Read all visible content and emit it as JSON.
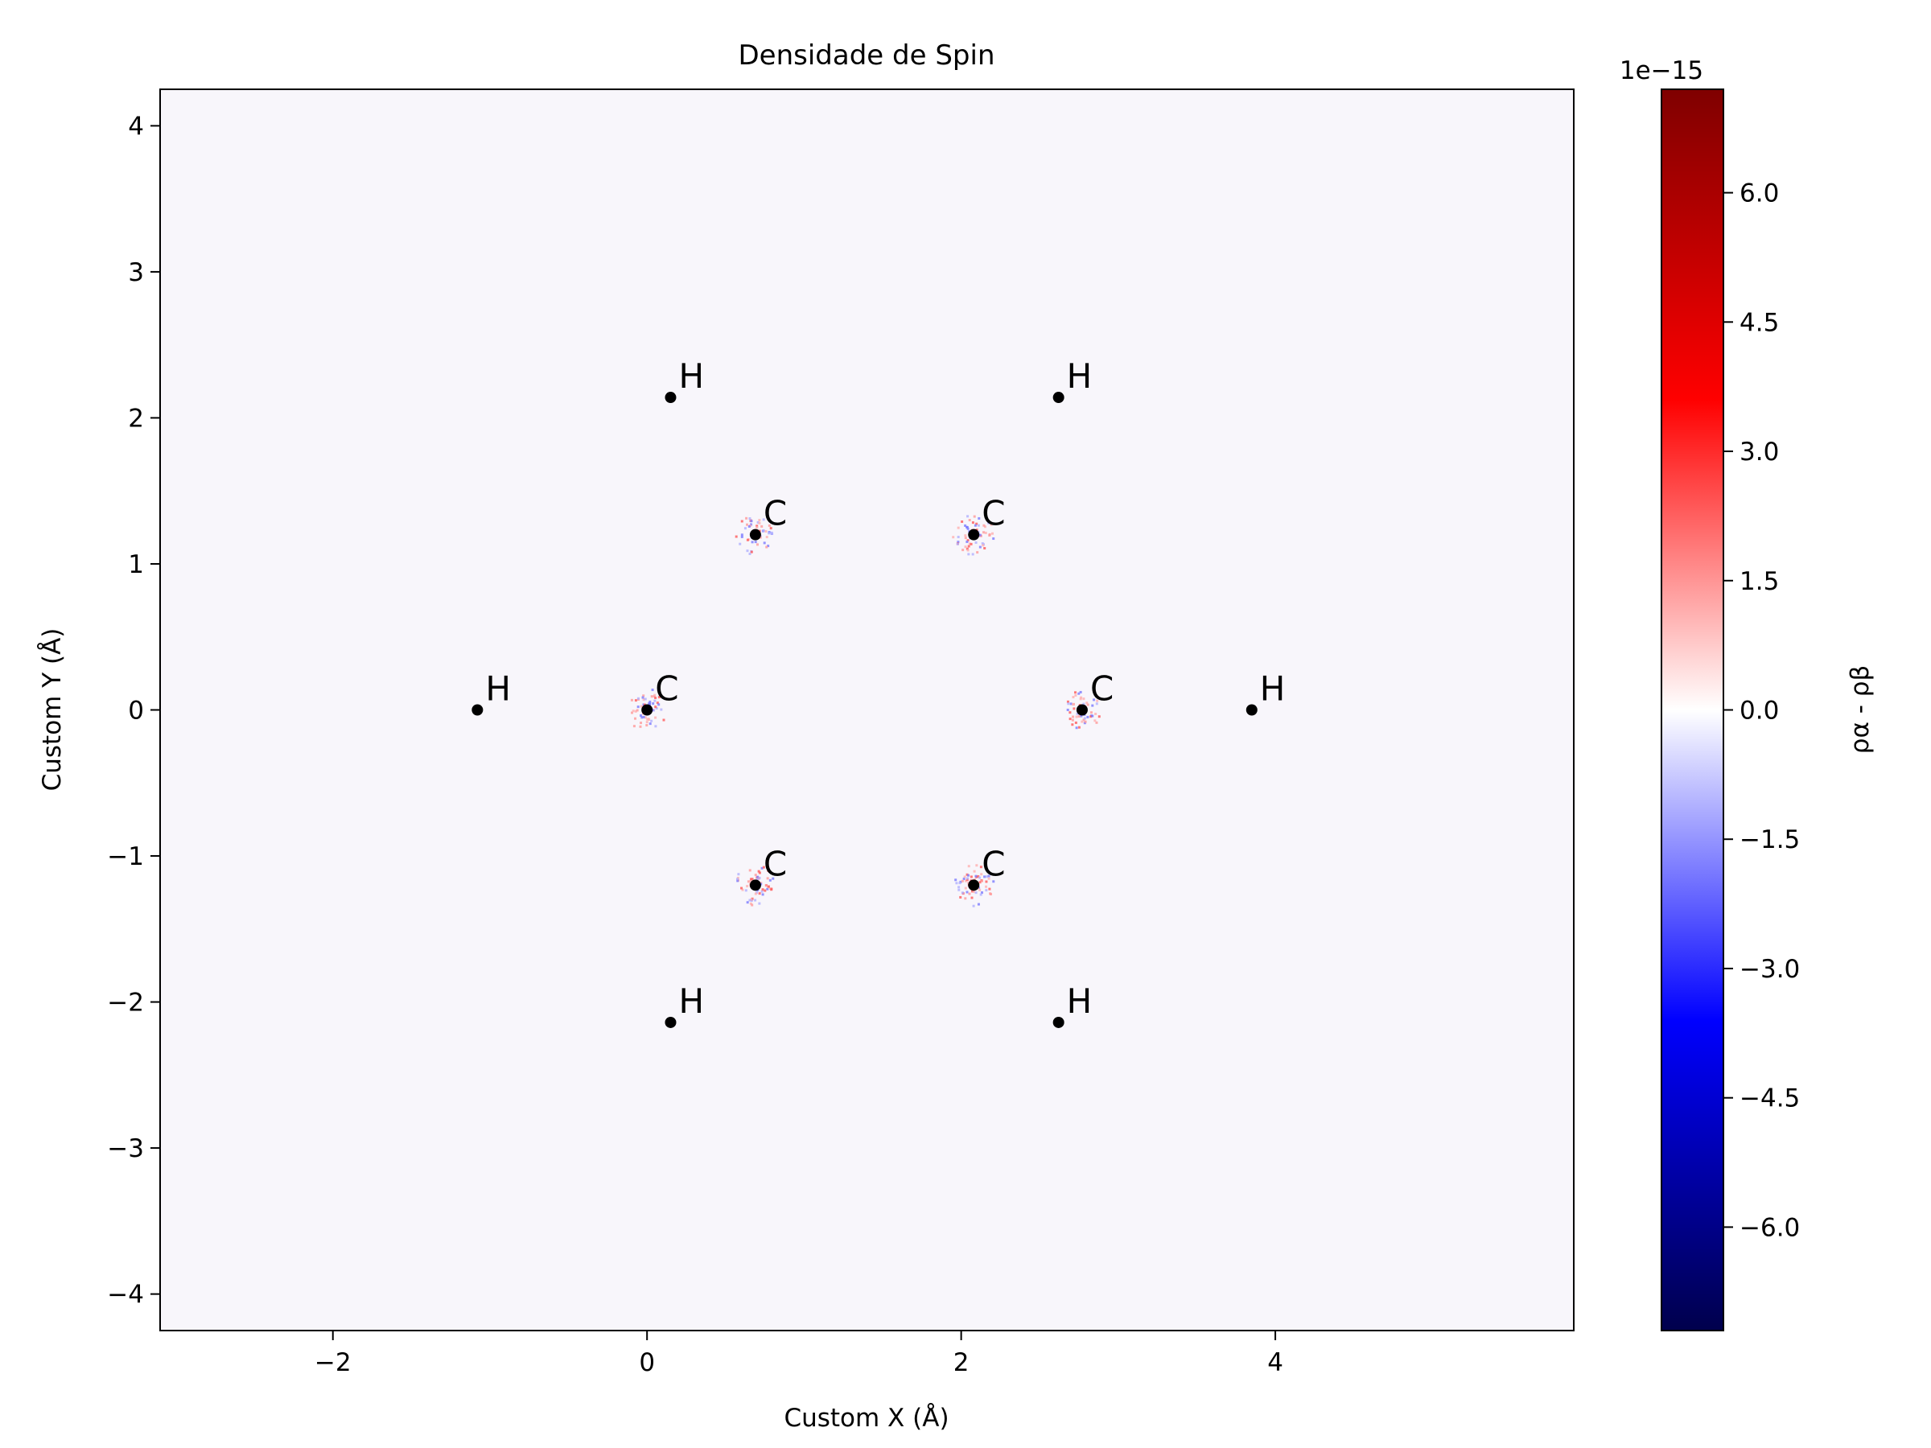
{
  "chart_data": {
    "type": "heatmap",
    "title": "Densidade de Spin",
    "xlabel": "Custom X (Å)",
    "ylabel": "Custom Y (Å)",
    "xlim": [
      -3.1,
      5.9
    ],
    "ylim": [
      -4.25,
      4.25
    ],
    "x_ticks": [
      -2,
      0,
      2,
      4
    ],
    "x_tick_labels": [
      "−2",
      "0",
      "2",
      "4"
    ],
    "y_ticks": [
      4,
      3,
      2,
      1,
      0,
      -1,
      -2,
      -3,
      -4
    ],
    "y_tick_labels": [
      "4",
      "3",
      "2",
      "1",
      "0",
      "−1",
      "−2",
      "−3",
      "−4"
    ],
    "grid": false,
    "atoms": [
      {
        "label": "C",
        "x": 0.0,
        "y": 0.0
      },
      {
        "label": "C",
        "x": 0.69,
        "y": 1.2
      },
      {
        "label": "C",
        "x": 2.08,
        "y": 1.2
      },
      {
        "label": "C",
        "x": 2.77,
        "y": 0.0
      },
      {
        "label": "C",
        "x": 2.08,
        "y": -1.2
      },
      {
        "label": "C",
        "x": 0.69,
        "y": -1.2
      },
      {
        "label": "H",
        "x": -1.08,
        "y": 0.0
      },
      {
        "label": "H",
        "x": 0.15,
        "y": 2.14
      },
      {
        "label": "H",
        "x": 2.62,
        "y": 2.14
      },
      {
        "label": "H",
        "x": 3.85,
        "y": 0.0
      },
      {
        "label": "H",
        "x": 2.62,
        "y": -2.14
      },
      {
        "label": "H",
        "x": 0.15,
        "y": -2.14
      }
    ],
    "colorbar": {
      "label": "ρα - ρβ",
      "offset_text": "1e−15",
      "colormap": "seismic",
      "range": [
        -7.2,
        7.2
      ],
      "ticks": [
        6.0,
        4.5,
        3.0,
        1.5,
        0.0,
        -1.5,
        -3.0,
        -4.5,
        -6.0
      ],
      "tick_labels": [
        "6.0",
        "4.5",
        "3.0",
        "1.5",
        "0.0",
        "−1.5",
        "−3.0",
        "−4.5",
        "−6.0"
      ],
      "colors": [
        "#00004c",
        "#0000ff",
        "#ffffff",
        "#ff0000",
        "#7f0000"
      ]
    }
  }
}
